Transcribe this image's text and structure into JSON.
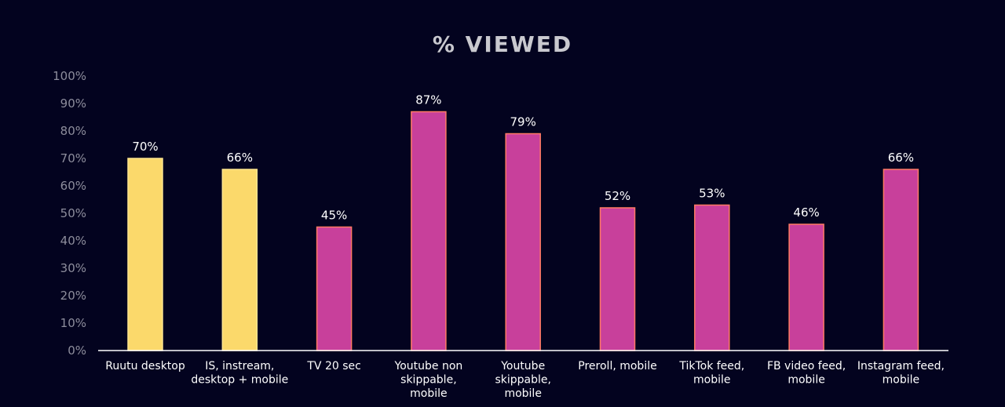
{
  "chart_data": {
    "type": "bar",
    "title": "% VIEWED",
    "xlabel": "",
    "ylabel": "",
    "ylim": [
      0,
      100
    ],
    "y_ticks": [
      "0%",
      "10%",
      "20%",
      "30%",
      "40%",
      "50%",
      "60%",
      "70%",
      "80%",
      "90%",
      "100%"
    ],
    "grid": false,
    "categories": [
      [
        "Ruutu desktop"
      ],
      [
        "IS, instream,",
        "desktop + mobile"
      ],
      [
        "TV 20 sec"
      ],
      [
        "Youtube non",
        "skippable,",
        "mobile"
      ],
      [
        "Youtube",
        "skippable,",
        "mobile"
      ],
      [
        "Preroll, mobile"
      ],
      [
        "TikTok feed,",
        "mobile"
      ],
      [
        "FB video feed,",
        "mobile"
      ],
      [
        "Instagram feed,",
        "mobile"
      ]
    ],
    "values": [
      70,
      66,
      45,
      87,
      79,
      52,
      53,
      46,
      66
    ],
    "data_labels": [
      "70%",
      "66%",
      "45%",
      "87%",
      "79%",
      "52%",
      "53%",
      "46%",
      "66%"
    ],
    "bar_colors": [
      "#fbd96b",
      "#fbd96b",
      "#c8409b",
      "#c8409b",
      "#c8409b",
      "#c8409b",
      "#c8409b",
      "#c8409b",
      "#c8409b"
    ],
    "bar_outline_colors": [
      "#fde58f",
      "#fde58f",
      "#ff7a64",
      "#ff7a64",
      "#ff7a64",
      "#ff7a64",
      "#ff7a64",
      "#ff7a64",
      "#ff7a64"
    ],
    "axis_color": "#ffffff",
    "background": "#03031f"
  }
}
